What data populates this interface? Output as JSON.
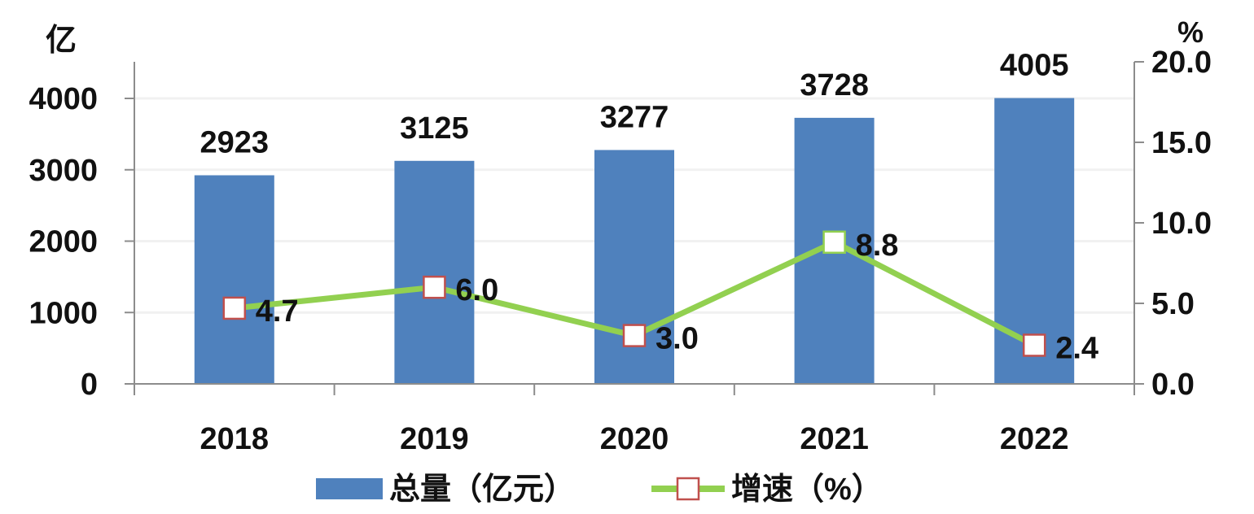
{
  "chart_data": {
    "type": "bar",
    "categories": [
      "2018",
      "2019",
      "2020",
      "2021",
      "2022"
    ],
    "series": [
      {
        "name": "总量（亿元）",
        "kind": "bar",
        "axis": "left",
        "values": [
          2923,
          3125,
          3277,
          3728,
          4005
        ],
        "color": "#4f81bd"
      },
      {
        "name": "增速（%）",
        "kind": "line",
        "axis": "right",
        "values": [
          4.7,
          6.0,
          3.0,
          8.8,
          2.4
        ],
        "value_labels": [
          "4.7",
          "6.0",
          "3.0",
          "8.8",
          "2.4"
        ],
        "color": "#92d050",
        "marker_edge": "#c0504d",
        "marker_fill": "#ffffff"
      }
    ],
    "left_axis": {
      "unit": "亿",
      "ylim": [
        0,
        4000
      ],
      "ticks": [
        0,
        1000,
        2000,
        3000,
        4000
      ],
      "tick_labels": [
        "0",
        "1000",
        "2000",
        "3000",
        "4000"
      ]
    },
    "right_axis": {
      "unit": "%",
      "ylim": [
        0,
        20
      ],
      "ticks": [
        0,
        5,
        10,
        15,
        20
      ],
      "tick_labels": [
        "0.0",
        "5.0",
        "10.0",
        "15.0",
        "20.0"
      ]
    },
    "legend": {
      "placement": "bottom",
      "items": [
        "总量（亿元）",
        "增速（%）"
      ]
    },
    "grid": true
  }
}
